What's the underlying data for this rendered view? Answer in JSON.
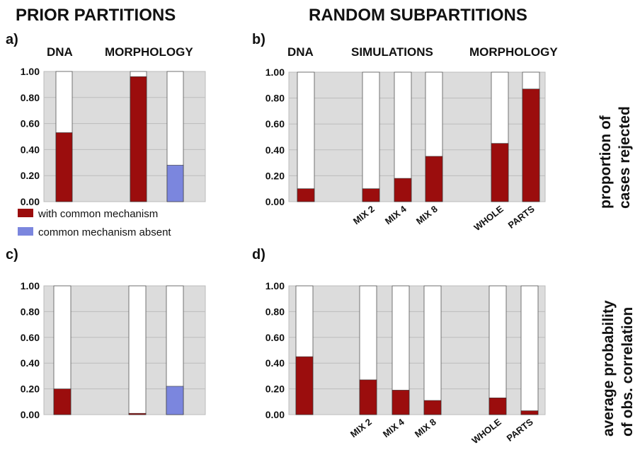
{
  "headers": {
    "prior": "PRIOR PARTITIONS",
    "random": "RANDOM SUBPARTITIONS"
  },
  "colors": {
    "with": "#9b0d0d",
    "absent": "#7b86de",
    "panel_bg": "#dcdcdc",
    "grid": "#bdbdbd",
    "bar_bg": "#ffffff"
  },
  "right_labels": {
    "top": [
      "proportion of",
      "cases rejected"
    ],
    "bottom": [
      "average probability",
      "of obs. correlation"
    ]
  },
  "legend": {
    "with": "with common mechanism",
    "absent": "common mechanism absent"
  },
  "chart_data": [
    {
      "id": "a",
      "label": "a)",
      "type": "bar",
      "ylim": [
        0,
        1
      ],
      "yticks": [
        "0.00",
        "0.20",
        "0.40",
        "0.60",
        "0.80",
        "1.00"
      ],
      "groups": [
        "DNA",
        "MORPHOLOGY"
      ],
      "bars": [
        {
          "category": "",
          "value": 0.53,
          "series": "with"
        },
        {
          "category": "",
          "value": 0.96,
          "series": "with"
        },
        {
          "category": "",
          "value": 0.28,
          "series": "absent"
        }
      ]
    },
    {
      "id": "b",
      "label": "b)",
      "type": "bar",
      "ylim": [
        0,
        1
      ],
      "yticks": [
        "0.00",
        "0.20",
        "0.40",
        "0.60",
        "0.80",
        "1.00"
      ],
      "groups": [
        "DNA",
        "SIMULATIONS",
        "MORPHOLOGY"
      ],
      "bars": [
        {
          "category": "",
          "value": 0.1,
          "series": "with"
        },
        {
          "category": "MIX 2",
          "value": 0.1,
          "series": "with"
        },
        {
          "category": "MIX 4",
          "value": 0.18,
          "series": "with"
        },
        {
          "category": "MIX 8",
          "value": 0.35,
          "series": "with"
        },
        {
          "category": "WHOLE",
          "value": 0.45,
          "series": "with"
        },
        {
          "category": "PARTS",
          "value": 0.87,
          "series": "with"
        }
      ]
    },
    {
      "id": "c",
      "label": "c)",
      "type": "bar",
      "ylim": [
        0,
        1
      ],
      "yticks": [
        "0.00",
        "0.20",
        "0.40",
        "0.60",
        "0.80",
        "1.00"
      ],
      "groups": [],
      "bars": [
        {
          "category": "",
          "value": 0.2,
          "series": "with"
        },
        {
          "category": "",
          "value": 0.01,
          "series": "with"
        },
        {
          "category": "",
          "value": 0.22,
          "series": "absent"
        }
      ]
    },
    {
      "id": "d",
      "label": "d)",
      "type": "bar",
      "ylim": [
        0,
        1
      ],
      "yticks": [
        "0.00",
        "0.20",
        "0.40",
        "0.60",
        "0.80",
        "1.00"
      ],
      "groups": [],
      "bars": [
        {
          "category": "",
          "value": 0.45,
          "series": "with"
        },
        {
          "category": "MIX 2",
          "value": 0.27,
          "series": "with"
        },
        {
          "category": "MIX 4",
          "value": 0.19,
          "series": "with"
        },
        {
          "category": "MIX 8",
          "value": 0.11,
          "series": "with"
        },
        {
          "category": "WHOLE",
          "value": 0.13,
          "series": "with"
        },
        {
          "category": "PARTS",
          "value": 0.03,
          "series": "with"
        }
      ]
    }
  ]
}
